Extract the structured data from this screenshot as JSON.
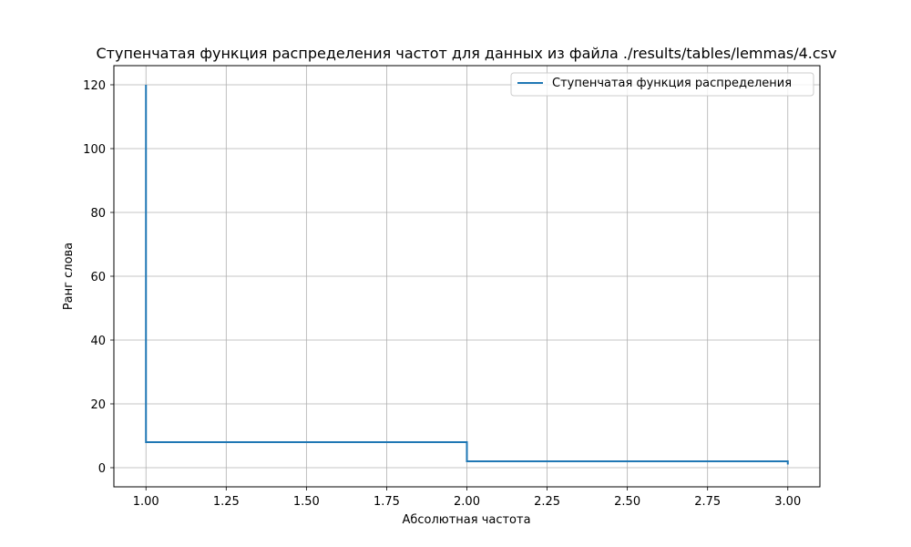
{
  "chart_data": {
    "type": "line",
    "step": true,
    "title": "Ступенчатая функция распределения частот для данных из файла ./results/tables/lemmas/4.csv",
    "xlabel": "Абсолютная частота",
    "ylabel": "Ранг слова",
    "xlim": [
      0.9,
      3.1
    ],
    "ylim": [
      -6,
      126
    ],
    "xticks": [
      1.0,
      1.25,
      1.5,
      1.75,
      2.0,
      2.25,
      2.5,
      2.75,
      3.0
    ],
    "xtick_labels": [
      "1.00",
      "1.25",
      "1.50",
      "1.75",
      "2.00",
      "2.25",
      "2.50",
      "2.75",
      "3.00"
    ],
    "yticks": [
      0,
      20,
      40,
      60,
      80,
      100,
      120
    ],
    "ytick_labels": [
      "0",
      "20",
      "40",
      "60",
      "80",
      "100",
      "120"
    ],
    "grid": true,
    "legend_position": "top-right",
    "series": [
      {
        "name": "Ступенчатая функция распределения",
        "color": "#1f77b4",
        "x": [
          1,
          1,
          2,
          2,
          3,
          3
        ],
        "y": [
          120,
          8,
          8,
          2,
          2,
          1
        ]
      }
    ]
  }
}
